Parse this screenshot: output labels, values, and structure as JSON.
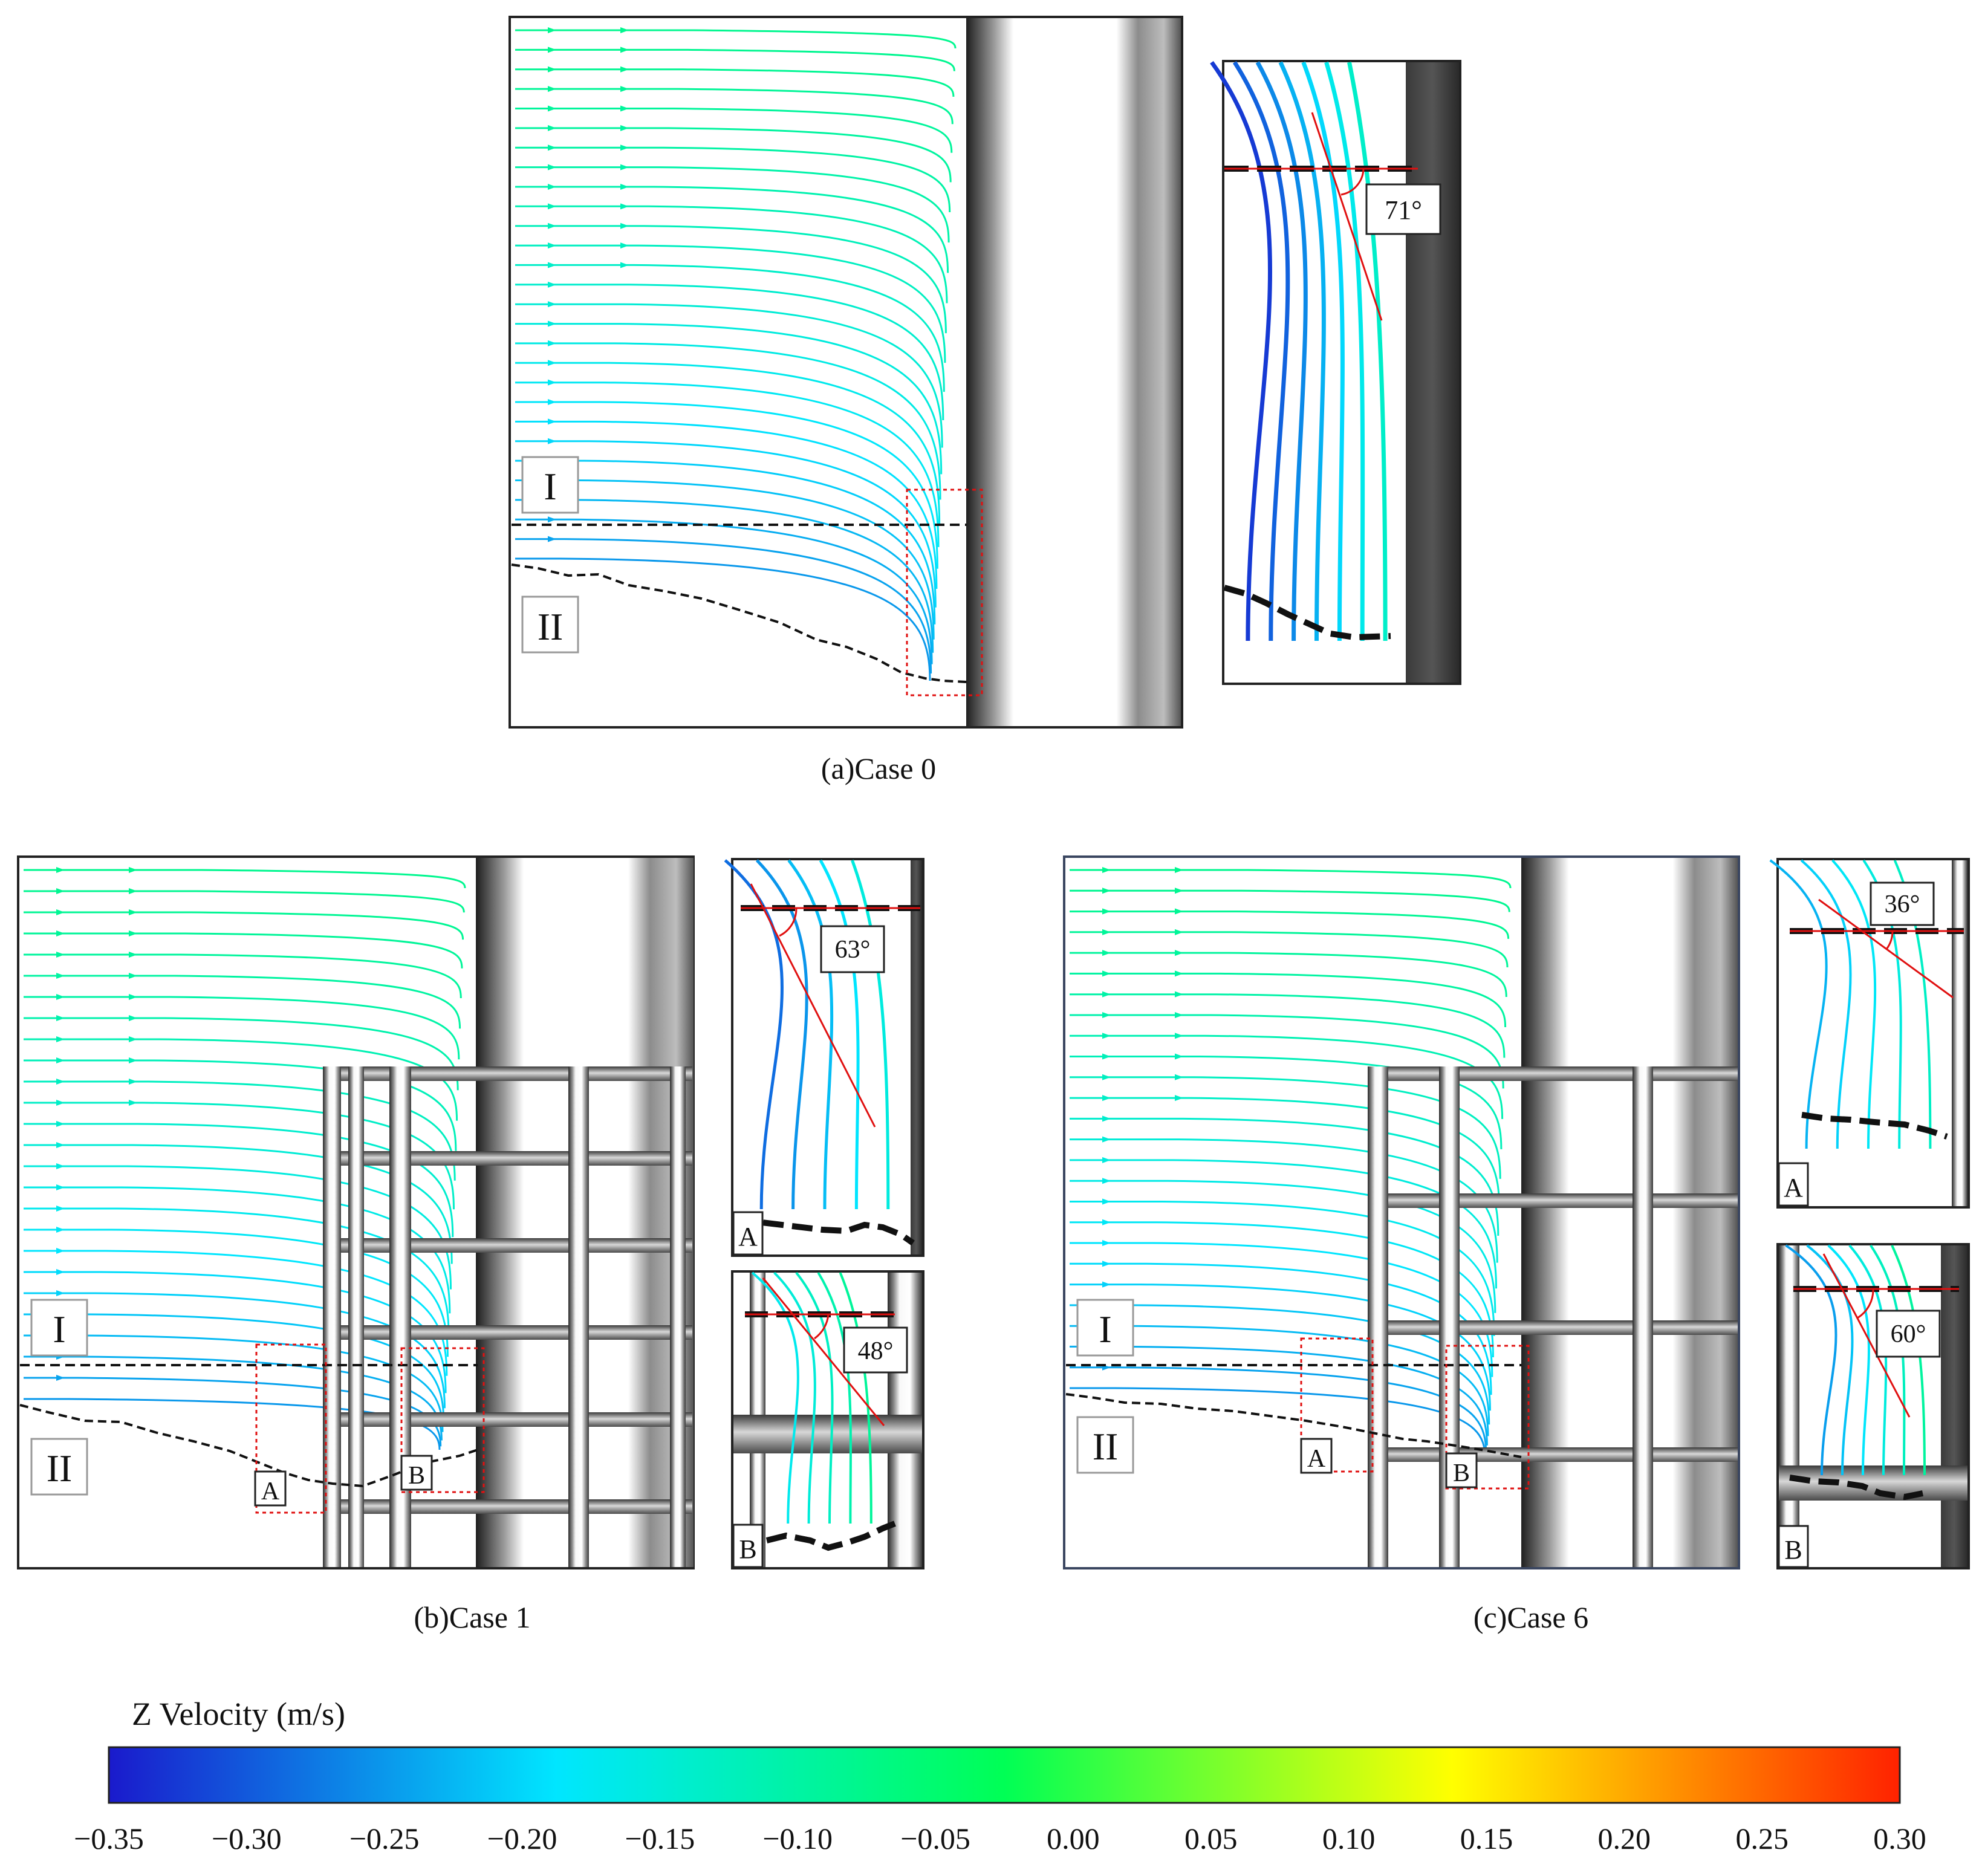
{
  "panels": {
    "a": {
      "caption": "(a)Case 0",
      "region_upper": "I",
      "region_lower": "II",
      "inset_angle": "71°"
    },
    "b": {
      "caption": "(b)Case 1",
      "region_upper": "I",
      "region_lower": "II",
      "box_a": "A",
      "box_b": "B",
      "inset_a_angle": "63°",
      "inset_b_angle": "48°",
      "inset_a_label": "A",
      "inset_b_label": "B"
    },
    "c": {
      "caption": "(c)Case 6",
      "region_upper": "I",
      "region_lower": "II",
      "box_a": "A",
      "box_b": "B",
      "inset_a_angle": "36°",
      "inset_b_angle": "60°",
      "inset_a_label": "A",
      "inset_b_label": "B"
    }
  },
  "colorbar": {
    "title": "Z Velocity (m/s)",
    "ticks": [
      "−0.35",
      "−0.30",
      "−0.25",
      "−0.20",
      "−0.15",
      "−0.10",
      "−0.05",
      "0.00",
      "0.05",
      "0.10",
      "0.15",
      "0.20",
      "0.25",
      "0.30"
    ],
    "min": -0.35,
    "max": 0.3,
    "colors": [
      "#1a1acc",
      "#00e6ff",
      "#00ff55",
      "#ffff00",
      "#ff2200"
    ]
  }
}
